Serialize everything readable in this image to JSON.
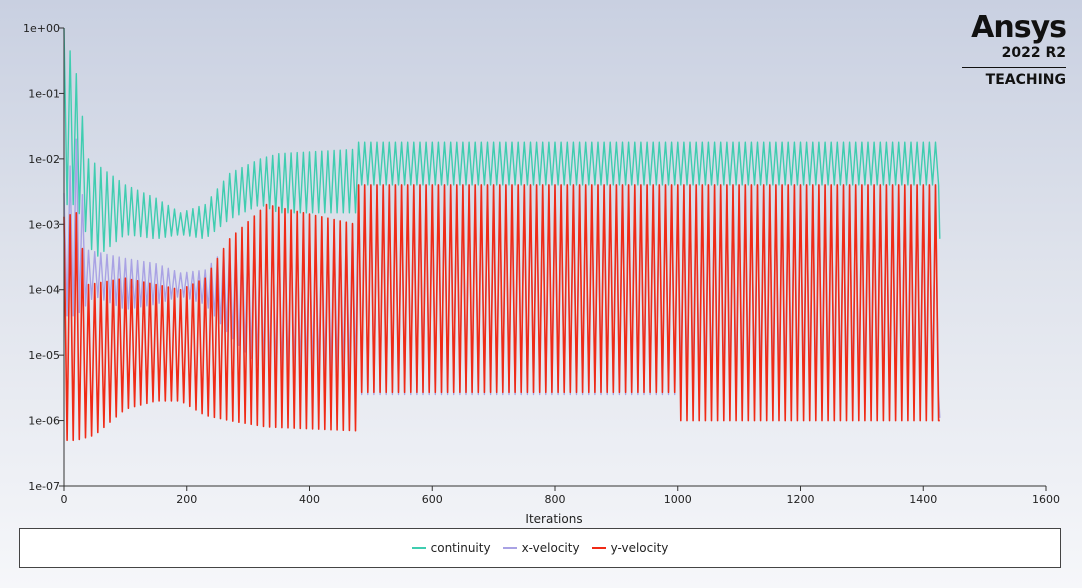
{
  "logo": {
    "name": "Ansys",
    "version": "2022 R2",
    "edition": "TEACHING"
  },
  "chart_data": {
    "type": "line",
    "title": "",
    "xlabel": "Iterations",
    "ylabel": "",
    "xlim": [
      0,
      1600
    ],
    "ylim": [
      1e-07,
      1
    ],
    "yscale": "log",
    "x_ticks": [
      0,
      200,
      400,
      600,
      800,
      1000,
      1200,
      1400,
      1600
    ],
    "y_ticks": [
      "1e-07",
      "1e-06",
      "1e-05",
      "1e-04",
      "1e-03",
      "1e-02",
      "1e-01",
      "1e+00"
    ],
    "grid": false,
    "legend_position": "bottom",
    "series": [
      {
        "name": "continuity",
        "color": "#3fcdb0",
        "x_end": 1427,
        "upper_envelope": [
          [
            0,
            1.0
          ],
          [
            20,
            0.2
          ],
          [
            40,
            0.01
          ],
          [
            100,
            0.004
          ],
          [
            150,
            0.0025
          ],
          [
            190,
            0.0015
          ],
          [
            230,
            0.002
          ],
          [
            270,
            0.006
          ],
          [
            320,
            0.01
          ],
          [
            350,
            0.012
          ],
          [
            475,
            0.014
          ],
          [
            480,
            0.018
          ],
          [
            1427,
            0.018
          ]
        ],
        "lower_envelope": [
          [
            0,
            0.002
          ],
          [
            20,
            0.002
          ],
          [
            50,
            0.0003
          ],
          [
            100,
            0.0007
          ],
          [
            150,
            0.0006
          ],
          [
            190,
            0.0007
          ],
          [
            230,
            0.0006
          ],
          [
            270,
            0.0012
          ],
          [
            320,
            0.002
          ],
          [
            350,
            0.0015
          ],
          [
            475,
            0.0015
          ],
          [
            480,
            0.004
          ],
          [
            1427,
            0.004
          ]
        ],
        "end_value": 0.0006
      },
      {
        "name": "x-velocity",
        "color": "#a9a2e4",
        "x_end": 1427,
        "upper_envelope": [
          [
            0,
            0.003
          ],
          [
            20,
            0.02
          ],
          [
            40,
            0.0004
          ],
          [
            100,
            0.0003
          ],
          [
            150,
            0.00025
          ],
          [
            190,
            0.00018
          ],
          [
            230,
            0.0002
          ],
          [
            270,
            0.0005
          ],
          [
            330,
            0.0008
          ],
          [
            475,
            0.001
          ],
          [
            480,
            0.004
          ],
          [
            1427,
            0.004
          ]
        ],
        "lower_envelope": [
          [
            0,
            4e-05
          ],
          [
            20,
            4e-05
          ],
          [
            50,
            8e-05
          ],
          [
            100,
            5e-05
          ],
          [
            150,
            6e-05
          ],
          [
            190,
            8e-05
          ],
          [
            230,
            6e-05
          ],
          [
            270,
            2e-05
          ],
          [
            330,
            5e-06
          ],
          [
            475,
            5e-06
          ],
          [
            480,
            2.5e-06
          ],
          [
            1427,
            2.5e-06
          ]
        ],
        "end_value": 1.1e-06
      },
      {
        "name": "y-velocity",
        "color": "#f02a16",
        "x_end": 1427,
        "upper_envelope": [
          [
            0,
            0.0013
          ],
          [
            20,
            0.0015
          ],
          [
            40,
            0.00012
          ],
          [
            100,
            0.00015
          ],
          [
            150,
            0.00012
          ],
          [
            190,
            0.0001
          ],
          [
            230,
            0.00015
          ],
          [
            270,
            0.0006
          ],
          [
            330,
            0.002
          ],
          [
            475,
            0.001
          ],
          [
            480,
            0.004
          ],
          [
            1427,
            0.004
          ]
        ],
        "lower_envelope": [
          [
            0,
            5e-07
          ],
          [
            20,
            5e-07
          ],
          [
            50,
            6e-07
          ],
          [
            100,
            1.5e-06
          ],
          [
            150,
            2e-06
          ],
          [
            190,
            2e-06
          ],
          [
            230,
            1.2e-06
          ],
          [
            270,
            1e-06
          ],
          [
            330,
            8e-07
          ],
          [
            475,
            7e-07
          ],
          [
            480,
            2.7e-06
          ],
          [
            999,
            2.7e-06
          ],
          [
            1000,
            1e-06
          ],
          [
            1427,
            1e-06
          ]
        ],
        "end_value": 1e-06
      }
    ]
  }
}
